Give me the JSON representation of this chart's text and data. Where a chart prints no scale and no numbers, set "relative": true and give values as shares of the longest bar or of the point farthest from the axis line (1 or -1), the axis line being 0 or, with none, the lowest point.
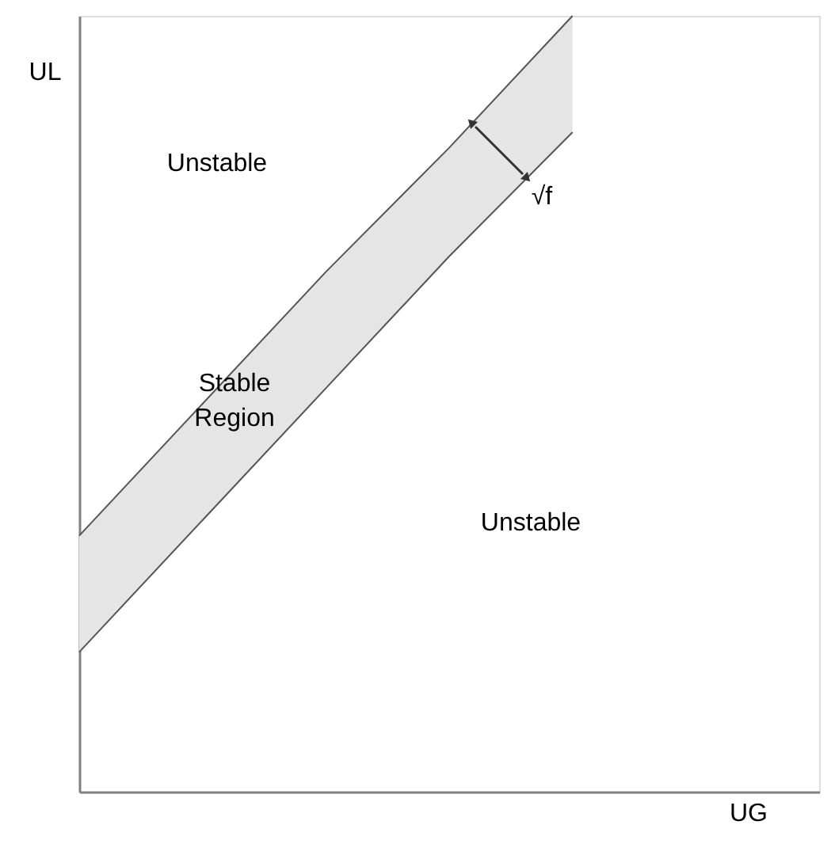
{
  "chart_data": {
    "type": "line",
    "xlabel": "UG",
    "ylabel": "UL",
    "relative": true,
    "categories": [
      null,
      null,
      null,
      null,
      null,
      null,
      null
    ],
    "series": [
      {
        "color": "#555555",
        "values": [
          0.18,
          0.35,
          0.52,
          0.69,
          0.85,
          null,
          null
        ]
      },
      {
        "color": "#555555",
        "values": [
          0.33,
          0.5,
          0.67,
          0.83,
          1.0,
          null,
          null
        ],
        "lower": [
          0.18,
          0.35,
          0.52,
          0.69,
          0.85,
          null,
          null
        ],
        "upper": [
          0.33,
          0.5,
          0.67,
          0.83,
          1.0,
          null,
          null
        ]
      }
    ],
    "annotations": [
      "Unstable",
      "Stable Region",
      "Unstable",
      "√f"
    ]
  }
}
